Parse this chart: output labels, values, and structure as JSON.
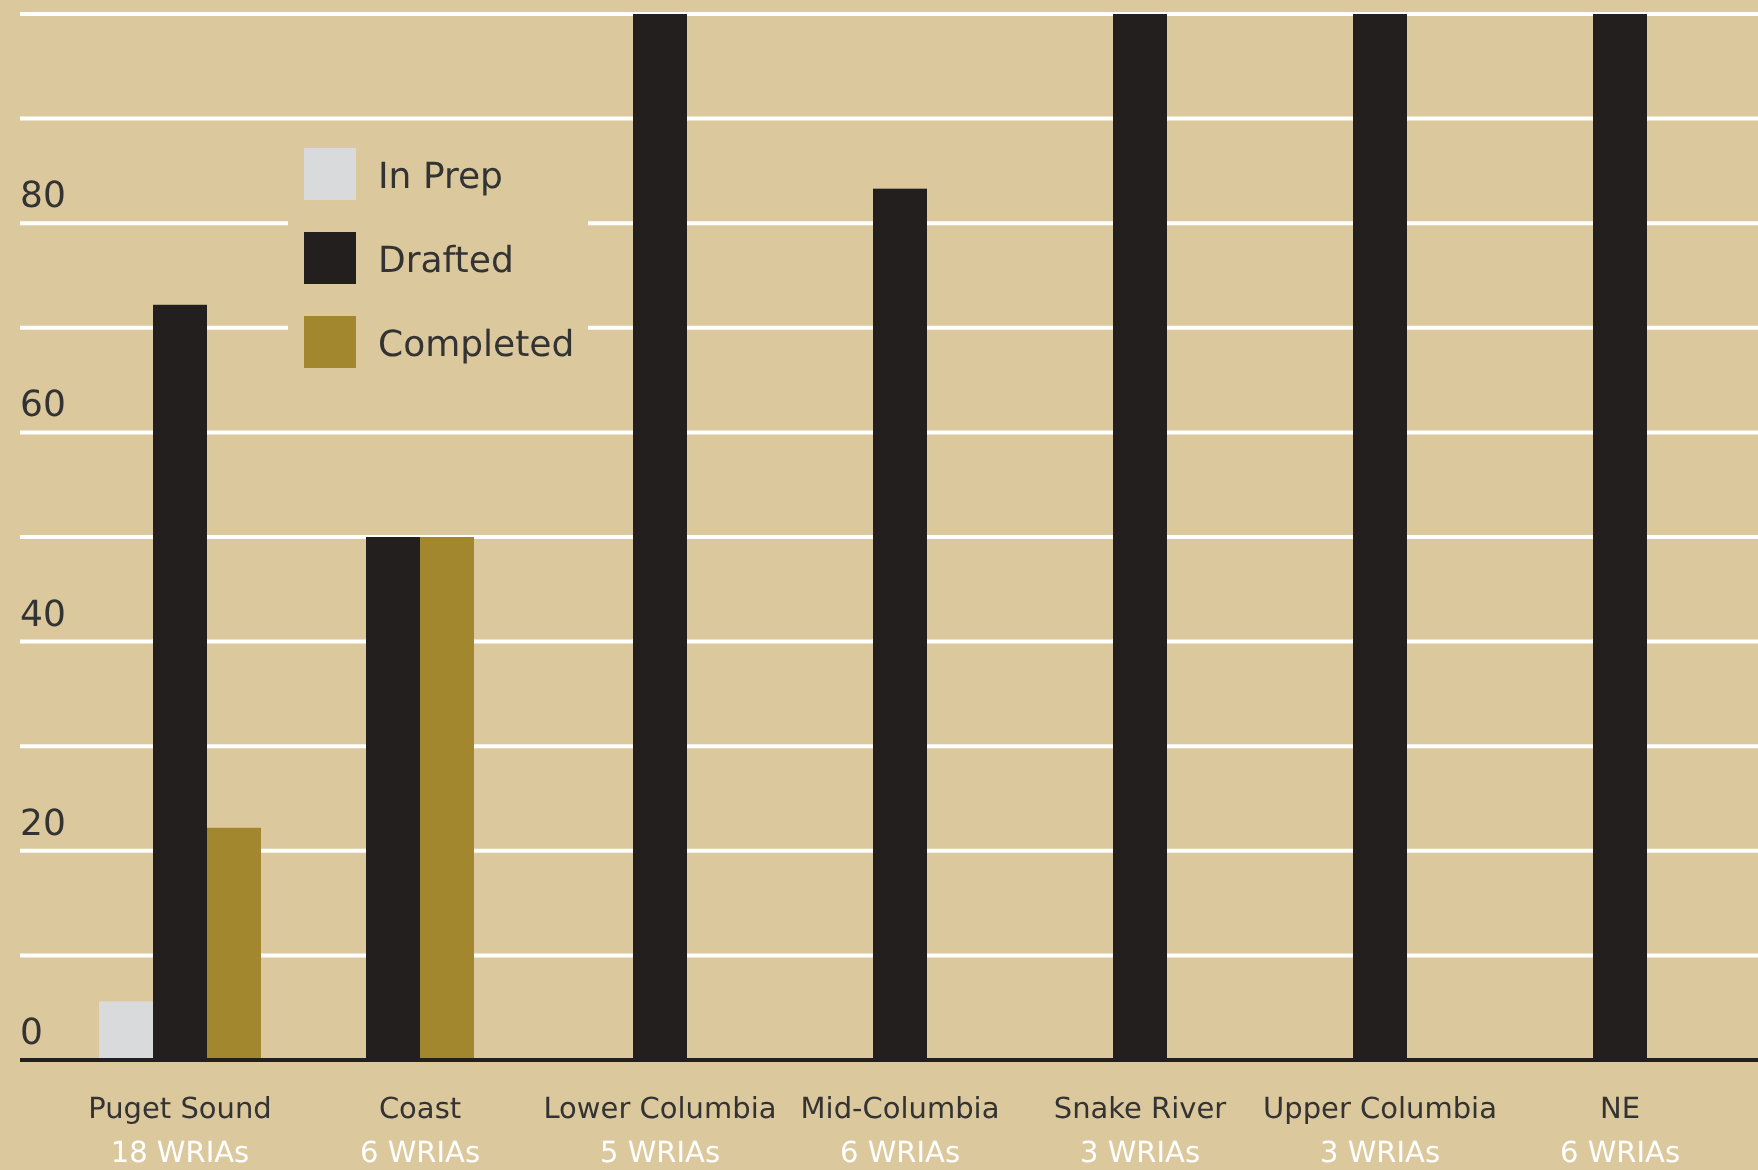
{
  "chart_data": {
    "type": "bar",
    "categories": [
      "Puget Sound\n18 WRIAs",
      "Coast\n6 WRIAs",
      "Lower Columbia\n5 WRIAs",
      "Mid-Columbia\n6 WRIAs",
      "Snake River\n3 WRIAs",
      "Upper Columbia\n3 WRIAs",
      "NE\n6 WRIAs"
    ],
    "series": [
      {
        "name": "In Prep",
        "color": "#d9dadb",
        "values": [
          5.6,
          null,
          null,
          null,
          null,
          null,
          null
        ]
      },
      {
        "name": "Drafted",
        "color": "#221f1e",
        "values": [
          72.2,
          50,
          100,
          83.3,
          100,
          100,
          100
        ]
      },
      {
        "name": "Completed",
        "color": "#a2872f",
        "values": [
          22.2,
          50,
          null,
          null,
          null,
          null,
          null
        ]
      }
    ],
    "ylim": [
      0,
      100
    ],
    "yticks": [
      0,
      {
        "value": 10,
        "label": null
      },
      20,
      {
        "value": 30,
        "label": null
      },
      40,
      {
        "value": 50,
        "label": null
      },
      60,
      {
        "value": 70,
        "label": null
      },
      80,
      {
        "value": 90,
        "label": null
      },
      {
        "value": 100,
        "label": null
      }
    ],
    "grid": "y",
    "legend": "top left"
  }
}
